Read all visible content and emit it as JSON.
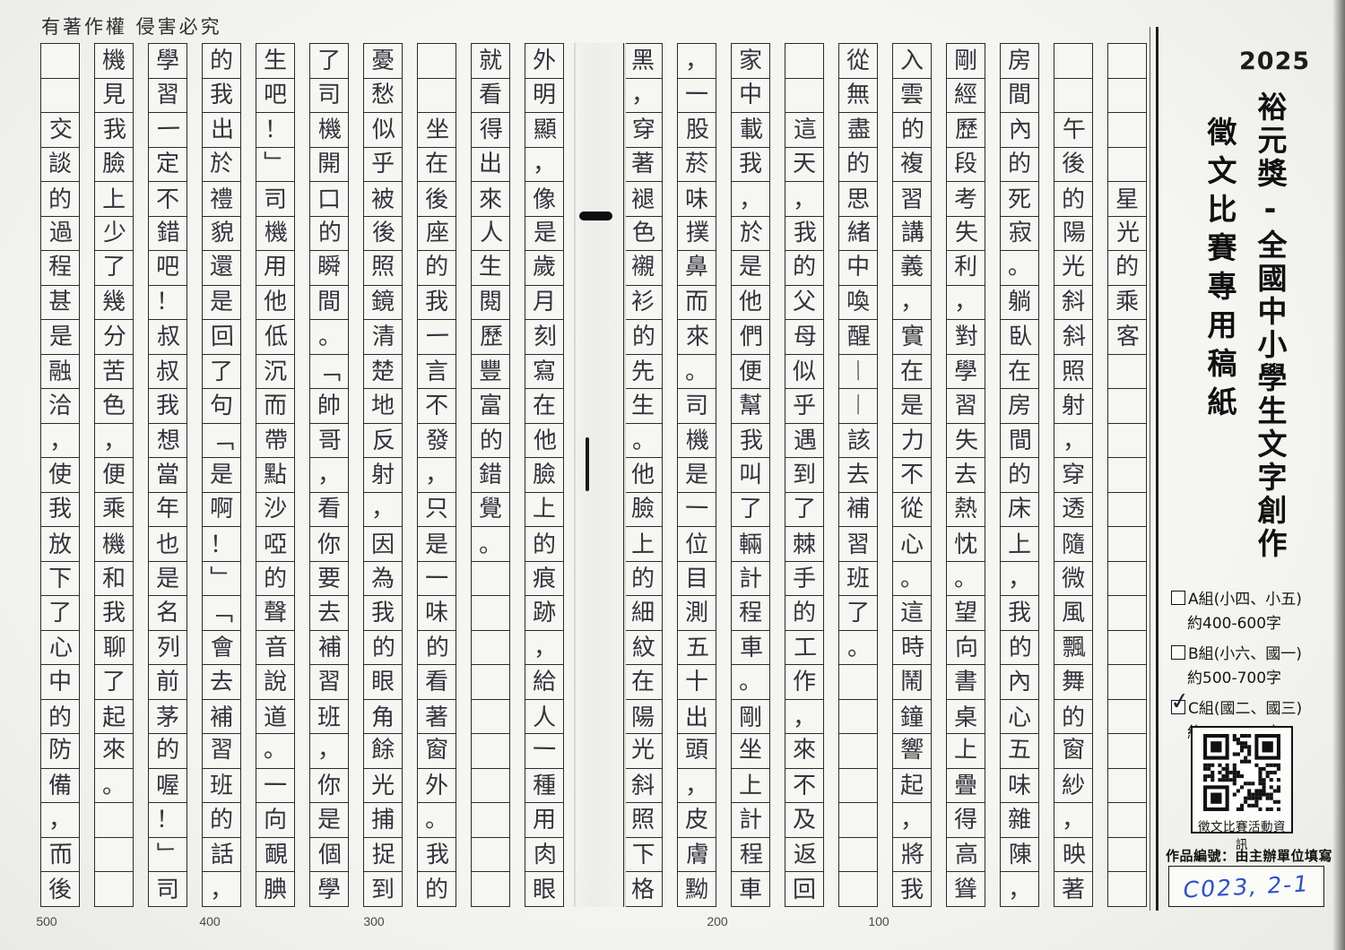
{
  "header": {
    "copyright_notice": "有著作權 侵害必究"
  },
  "sidebar": {
    "year": "2025",
    "title_main": "裕元獎-全國中小學生文字創作",
    "title_sub": "徵文比賽專用稿紙",
    "groups": [
      {
        "checked": false,
        "label": "A組(小四、小五)",
        "range": "約400-600字",
        "mark": ""
      },
      {
        "checked": false,
        "label": "B組(小六、國一)",
        "range": "約500-700字",
        "mark": ""
      },
      {
        "checked": true,
        "label": "C組(國二、國三)",
        "range": "約600-800字",
        "mark": "✓"
      }
    ],
    "qr_caption": "徵文比賽活動資訊",
    "entry_label": "作品編號：由主辦單位填寫",
    "entry_code": "C023, 2-1"
  },
  "manuscript": {
    "essay_title": "星光的乘客",
    "rows_per_column": 25,
    "columns_total": 20,
    "count_markers": [
      "500",
      "400",
      "300",
      "200",
      "100"
    ],
    "columns": [
      {
        "lead": 4,
        "text": "星光的乘客"
      },
      {
        "lead": 2,
        "text": "午後的陽光斜斜照射，穿透隨微風飄舞的窗紗，映著"
      },
      {
        "lead": 0,
        "text": "房間內的死寂。躺臥在房間的床上，我的內心五味雜陳，"
      },
      {
        "lead": 0,
        "text": "剛經歷段考失利，對學習失去熱忱。望向書桌上疊得高聳"
      },
      {
        "lead": 0,
        "text": "入雲的複習講義，實在是力不從心。這時鬧鐘響起，將我"
      },
      {
        "lead": 0,
        "text": "從無盡的思緒中喚醒︱︱該去補習班了。"
      },
      {
        "lead": 2,
        "text": "這天，我的父母似乎遇到了棘手的工作，來不及返回"
      },
      {
        "lead": 0,
        "text": "家中載我，於是他們便幫我叫了輛計程車。剛坐上計程車"
      },
      {
        "lead": 0,
        "text": "，一股菸味撲鼻而來。司機是一位目測五十出頭，皮膚黝"
      },
      {
        "lead": 0,
        "text": "黑，穿著褪色襯衫的先生。他臉上的細紋在陽光斜照下格"
      },
      {
        "lead": 0,
        "text": "外明顯，像是歲月刻寫在他臉上的痕跡，給人一種用肉眼"
      },
      {
        "lead": 0,
        "text": "就看得出來人生閱歷豐富的錯覺。"
      },
      {
        "lead": 2,
        "text": "坐在後座的我一言不發，只是一味的看著窗外。我的"
      },
      {
        "lead": 0,
        "text": "憂愁似乎被後照鏡清楚地反射，因為我的眼角餘光捕捉到"
      },
      {
        "lead": 0,
        "text": "了司機開口的瞬間。﹁帥哥，看你要去補習班，你是個學"
      },
      {
        "lead": 0,
        "text": "生吧！﹂司機用他低沉而帶點沙啞的聲音說道。一向靦腆"
      },
      {
        "lead": 0,
        "text": "的我出於禮貌還是回了句﹁是啊！﹂﹁會去補習班的話，"
      },
      {
        "lead": 0,
        "text": "學習一定不錯吧！叔叔我想當年也是名列前茅的喔！﹂司"
      },
      {
        "lead": 0,
        "text": "機見我臉上少了幾分苦色，便乘機和我聊了起來。"
      },
      {
        "lead": 2,
        "text": "交談的過程甚是融洽，使我放下了心中的防備，而後"
      }
    ]
  }
}
